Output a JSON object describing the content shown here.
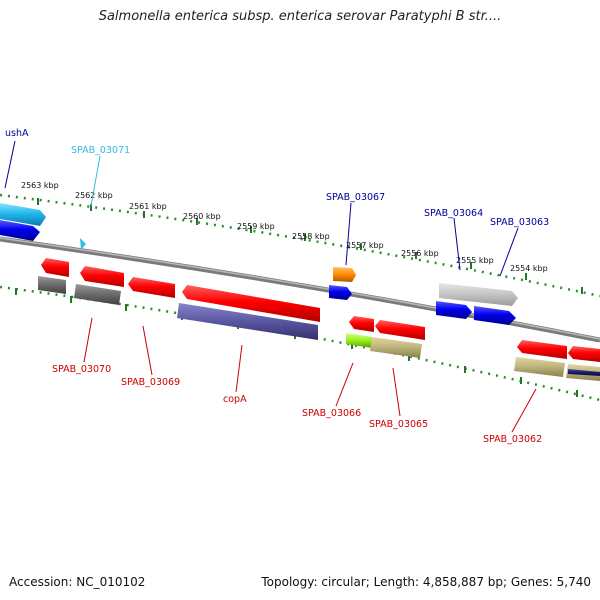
{
  "title": "Salmonella enterica subsp. enterica serovar Paratyphi B str....",
  "footer": {
    "accession": "Accession: NC_010102",
    "summary": "Topology: circular; Length: 4,858,887 bp; Genes: 5,740"
  },
  "colors": {
    "label_forward": "#000099",
    "label_reverse": "#cc0000",
    "label_highlight": "#33bbdd",
    "tick": "#227722",
    "backbone": "#808080"
  },
  "ruler": [
    "2563 kbp",
    "2562 kbp",
    "2561 kbp",
    "2560 kbp",
    "2559 kbp",
    "2558 kbp",
    "2557 kbp",
    "2556 kbp",
    "2555 kbp",
    "2554 kbp"
  ],
  "genes_forward": [
    "ushA",
    "SPAB_03071",
    "SPAB_03067",
    "SPAB_03064",
    "SPAB_03063"
  ],
  "genes_reverse": [
    "SPAB_03070",
    "SPAB_03069",
    "copA",
    "SPAB_03066",
    "SPAB_03065",
    "SPAB_03062"
  ]
}
